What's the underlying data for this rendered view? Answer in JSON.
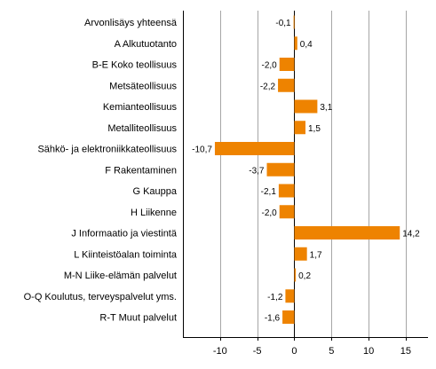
{
  "chart_data": {
    "type": "bar",
    "orientation": "horizontal",
    "categories": [
      "Arvonlisäys yhteensä",
      "A Alkutuotanto",
      "B-E Koko teollisuus",
      "Metsäteollisuus",
      "Kemianteollisuus",
      "Metalliteollisuus",
      "Sähkö- ja elektroniikkateollisuus",
      "F Rakentaminen",
      "G Kauppa",
      "H Liikenne",
      "J Informaatio ja viestintä",
      "L Kiinteistöalan toiminta",
      "M-N Liike-elämän palvelut",
      "O-Q Koulutus, terveyspalvelut yms.",
      "R-T Muut palvelut"
    ],
    "values": [
      -0.1,
      0.4,
      -2.0,
      -2.2,
      3.1,
      1.5,
      -10.7,
      -3.7,
      -2.1,
      -2.0,
      14.2,
      1.7,
      0.2,
      -1.2,
      -1.6
    ],
    "value_labels": [
      "-0,1",
      "0,4",
      "-2,0",
      "-2,2",
      "3,1",
      "1,5",
      "-10,7",
      "-3,7",
      "-2,1",
      "-2,0",
      "14,2",
      "1,7",
      "0,2",
      "-1,2",
      "-1,6"
    ],
    "xlim": [
      -15,
      18
    ],
    "xticks": [
      -10,
      -5,
      0,
      5,
      10,
      15
    ],
    "xtick_labels": [
      "-10",
      "-5",
      "0",
      "5",
      "10",
      "15"
    ],
    "grid": true,
    "bar_color": "#ee8300",
    "grid_color": "#a6a6a6",
    "axis_color": "#000000",
    "title": "",
    "xlabel": "",
    "ylabel": ""
  }
}
